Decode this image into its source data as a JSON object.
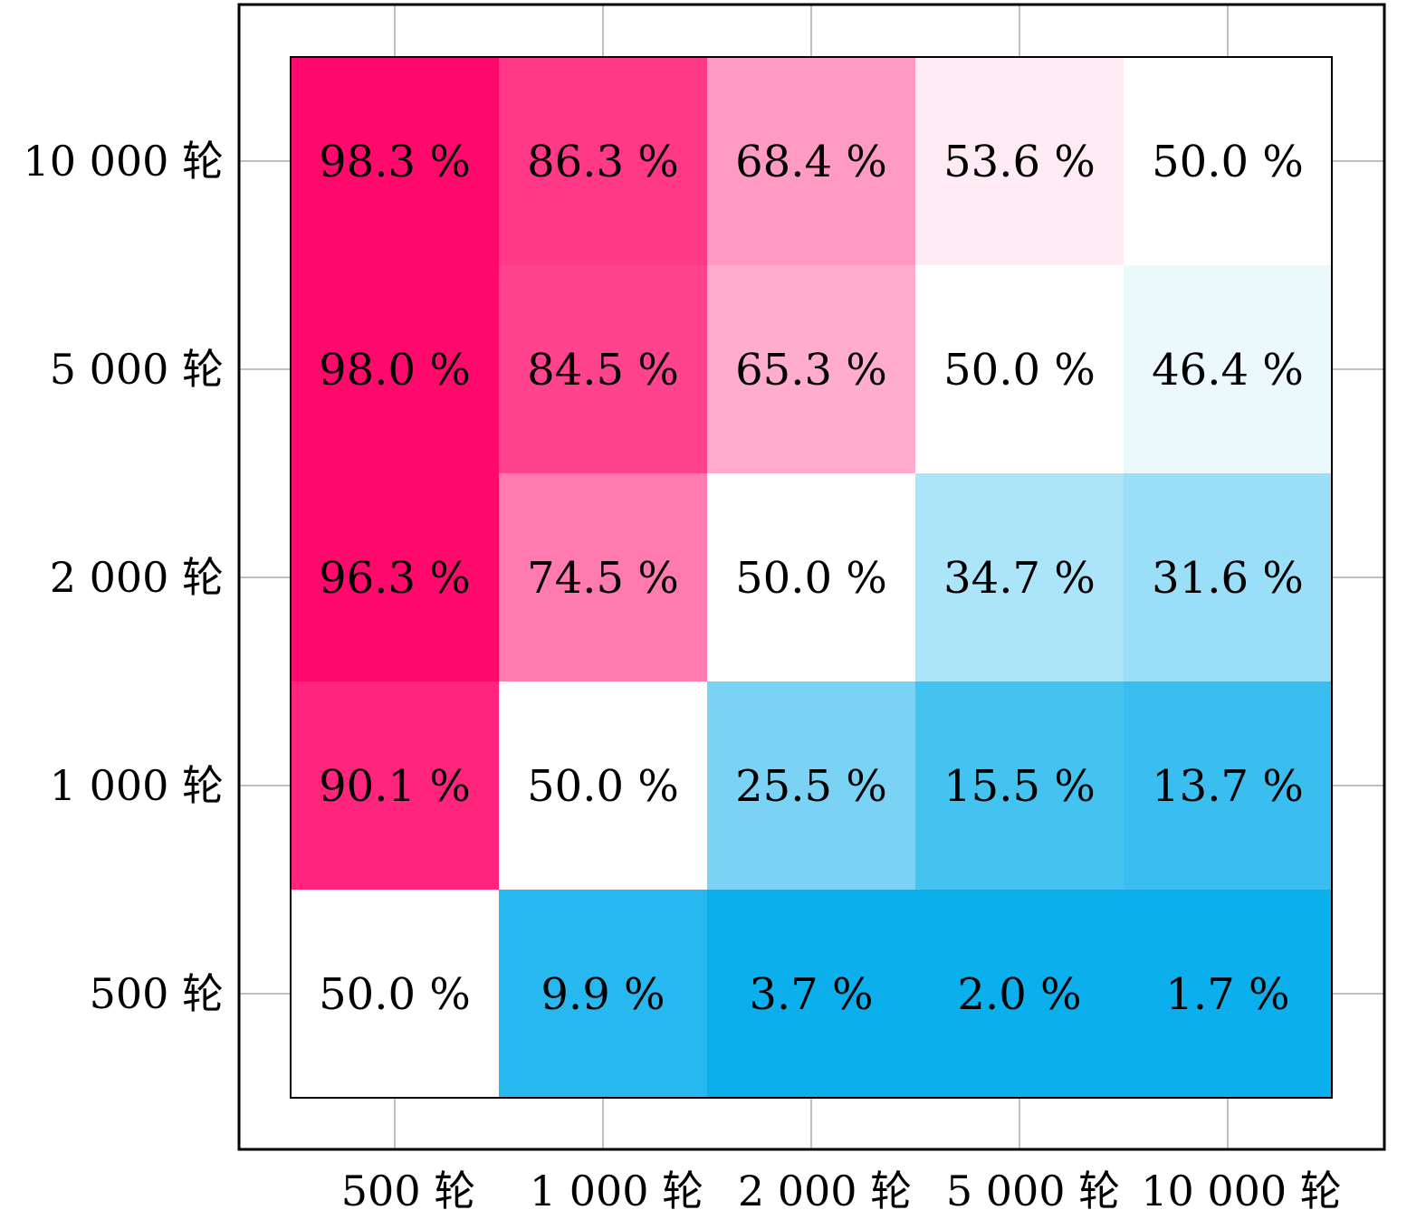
{
  "chart_data": {
    "type": "heatmap",
    "title": "",
    "xlabel": "",
    "ylabel": "",
    "x_categories": [
      "500 轮",
      "1 000 轮",
      "2 000 轮",
      "5 000 轮",
      "10 000 轮"
    ],
    "y_categories": [
      "500 轮",
      "1 000 轮",
      "2 000 轮",
      "5 000 轮",
      "10 000 轮"
    ],
    "grid": true,
    "value_suffix": " %",
    "colors": {
      "high": "#ff0a6c",
      "mid": "#ffffff",
      "low": "#0bafec",
      "frame": "#000000",
      "grid": "#c0c0c0"
    },
    "rows": [
      {
        "y": "10 000 轮",
        "values": [
          98.3,
          86.3,
          68.4,
          53.6,
          50.0
        ],
        "labels": [
          "98.3 %",
          "86.3 %",
          "68.4 %",
          "53.6 %",
          "50.0 %"
        ]
      },
      {
        "y": "5 000 轮",
        "values": [
          98.0,
          84.5,
          65.3,
          50.0,
          46.4
        ],
        "labels": [
          "98.0 %",
          "84.5 %",
          "65.3 %",
          "50.0 %",
          "46.4 %"
        ]
      },
      {
        "y": "2 000 轮",
        "values": [
          96.3,
          74.5,
          50.0,
          34.7,
          31.6
        ],
        "labels": [
          "96.3 %",
          "74.5 %",
          "50.0 %",
          "34.7 %",
          "31.6 %"
        ]
      },
      {
        "y": "1 000 轮",
        "values": [
          90.1,
          50.0,
          25.5,
          15.5,
          13.7
        ],
        "labels": [
          "90.1 %",
          "50.0 %",
          "25.5 %",
          "15.5 %",
          "13.7 %"
        ]
      },
      {
        "y": "500 轮",
        "values": [
          50.0,
          9.9,
          3.7,
          2.0,
          1.7
        ],
        "labels": [
          "50.0 %",
          "9.9 %",
          "3.7 %",
          "2.0 %",
          "1.7 %"
        ]
      }
    ]
  }
}
